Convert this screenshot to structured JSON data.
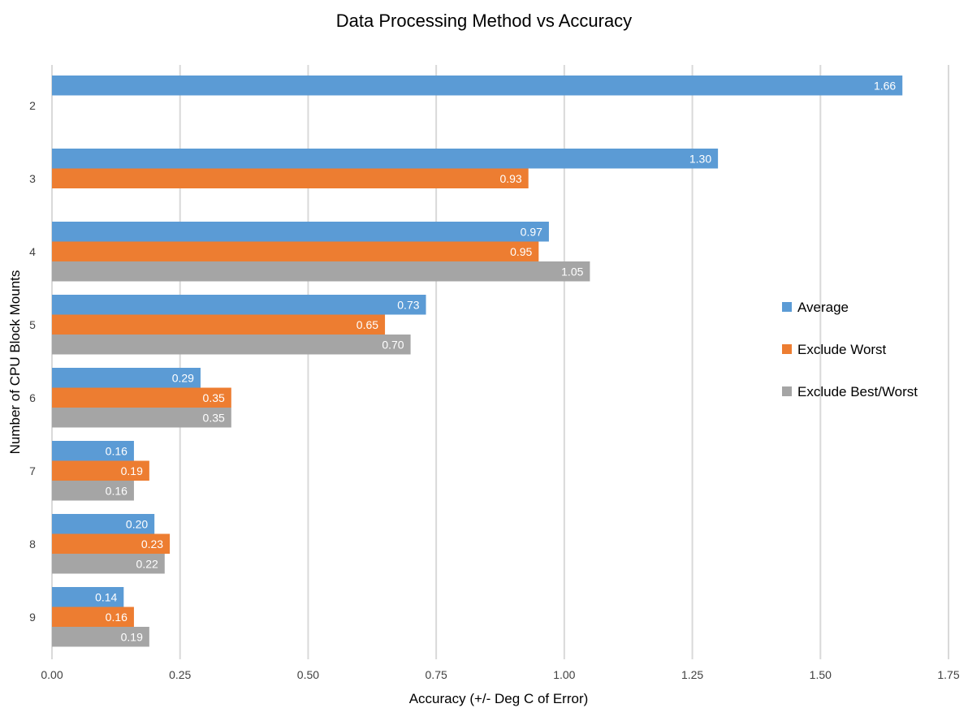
{
  "chart_data": {
    "type": "bar",
    "orientation": "horizontal",
    "title": "Data Processing Method vs Accuracy",
    "xlabel": "Accuracy (+/- Deg C of Error)",
    "ylabel": "Number of CPU Block Mounts",
    "xlim": [
      0,
      1.75
    ],
    "xticks": [
      "0.00",
      "0.25",
      "0.50",
      "0.75",
      "1.00",
      "1.25",
      "1.50",
      "1.75"
    ],
    "categories": [
      "2",
      "3",
      "4",
      "5",
      "6",
      "7",
      "8",
      "9"
    ],
    "grid": true,
    "legend_position": "right",
    "series": [
      {
        "name": "Average",
        "color": "#5B9BD5",
        "values": [
          1.66,
          1.3,
          0.97,
          0.73,
          0.29,
          0.16,
          0.2,
          0.14
        ],
        "labels": [
          "1.66",
          "1.30",
          "0.97",
          "0.73",
          "0.29",
          "0.16",
          "0.20",
          "0.14"
        ]
      },
      {
        "name": "Exclude Worst",
        "color": "#ED7D31",
        "values": [
          null,
          0.93,
          0.95,
          0.65,
          0.35,
          0.19,
          0.23,
          0.16
        ],
        "labels": [
          null,
          "0.93",
          "0.95",
          "0.65",
          "0.35",
          "0.19",
          "0.23",
          "0.16"
        ]
      },
      {
        "name": "Exclude Best/Worst",
        "color": "#A5A5A5",
        "values": [
          null,
          null,
          1.05,
          0.7,
          0.35,
          0.16,
          0.22,
          0.19
        ],
        "labels": [
          null,
          null,
          "1.05",
          "0.70",
          "0.35",
          "0.16",
          "0.22",
          "0.19"
        ]
      }
    ]
  }
}
